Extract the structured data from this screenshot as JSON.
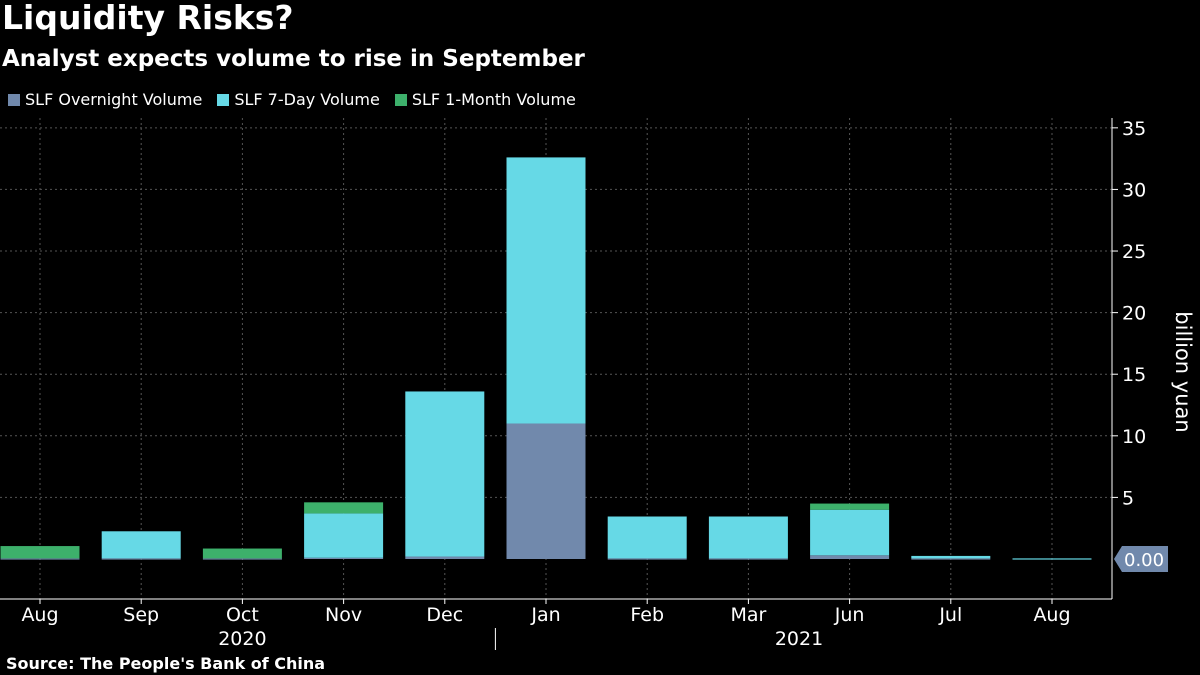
{
  "title": "Liquidity Risks?",
  "subtitle": "Analyst expects volume to rise in September",
  "source": "Source: The People's Bank of China",
  "colors": {
    "overnight": "#7189ac",
    "seven_day": "#66d9e6",
    "one_month": "#3db06b",
    "grid": "#555555",
    "callout": "#7189ac"
  },
  "legend": [
    {
      "label": "SLF Overnight Volume",
      "color": "#7189ac"
    },
    {
      "label": "SLF 7-Day Volume",
      "color": "#66d9e6"
    },
    {
      "label": "SLF 1-Month Volume",
      "color": "#3db06b"
    }
  ],
  "chart_data": {
    "type": "bar",
    "stacked": true,
    "categories": [
      "Aug",
      "Sep",
      "Oct",
      "Nov",
      "Dec",
      "Jan",
      "Feb",
      "Mar",
      "Jun",
      "Jul",
      "Aug"
    ],
    "year_labels": [
      {
        "label": "2020",
        "from": 0,
        "to": 4
      },
      {
        "label": "2021",
        "from": 5,
        "to": 10
      }
    ],
    "series": [
      {
        "name": "SLF Overnight Volume",
        "values": [
          0.05,
          0.05,
          0.05,
          0.1,
          0.2,
          11.0,
          0.05,
          0.05,
          0.3,
          0.05,
          0.0
        ]
      },
      {
        "name": "SLF 7-Day Volume",
        "values": [
          0.0,
          2.2,
          0.0,
          3.6,
          13.4,
          21.6,
          3.4,
          3.4,
          3.7,
          0.2,
          0.05
        ]
      },
      {
        "name": "SLF 1-Month Volume",
        "values": [
          1.0,
          0.0,
          0.8,
          0.9,
          0.0,
          0.0,
          0.0,
          0.0,
          0.5,
          0.0,
          0.0
        ]
      }
    ],
    "ylabel": "billion yuan",
    "ylim": [
      -3,
      35
    ],
    "yticks": [
      5,
      10,
      15,
      20,
      25,
      30,
      35
    ],
    "callout": "0.00",
    "grid": true,
    "y_axis_side": "right",
    "legend_position": "top-left"
  }
}
